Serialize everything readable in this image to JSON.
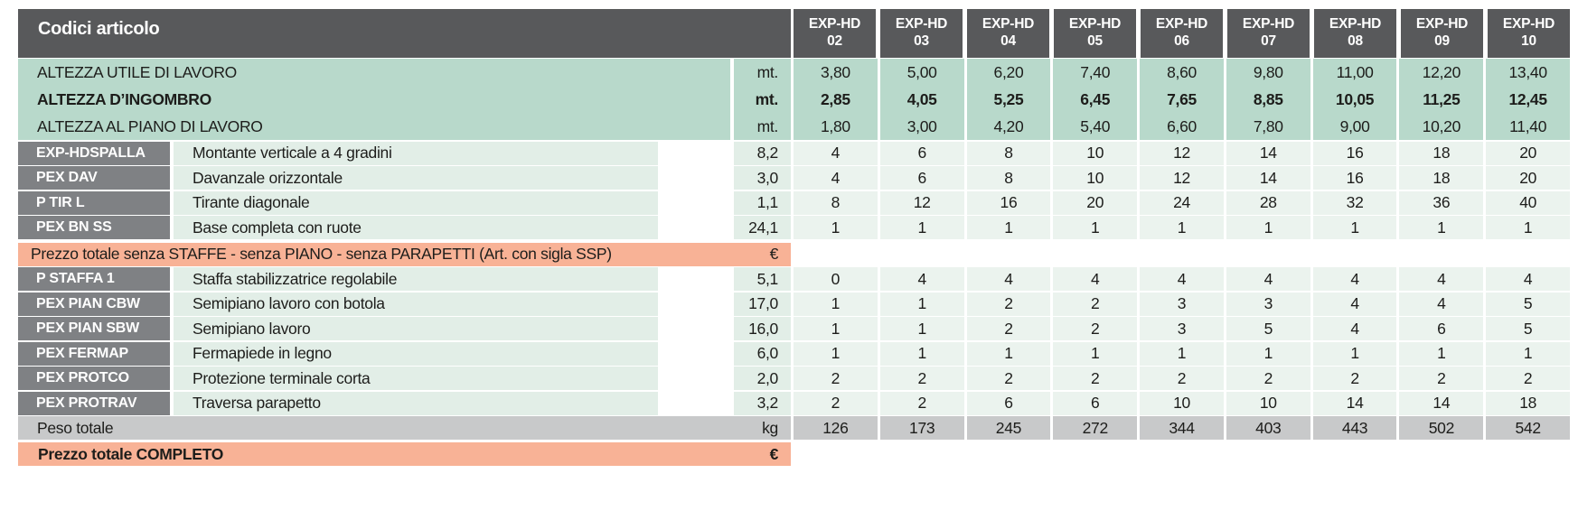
{
  "table": {
    "title": "Codici articolo",
    "column_headers": [
      {
        "model": "EXP-HD",
        "size": "02"
      },
      {
        "model": "EXP-HD",
        "size": "03"
      },
      {
        "model": "EXP-HD",
        "size": "04"
      },
      {
        "model": "EXP-HD",
        "size": "05"
      },
      {
        "model": "EXP-HD",
        "size": "06"
      },
      {
        "model": "EXP-HD",
        "size": "07"
      },
      {
        "model": "EXP-HD",
        "size": "08"
      },
      {
        "model": "EXP-HD",
        "size": "09"
      },
      {
        "model": "EXP-HD",
        "size": "10"
      }
    ],
    "height_rows": [
      {
        "label": "ALTEZZA UTILE DI LAVORO",
        "unit": "mt.",
        "bold": false,
        "values": [
          "3,80",
          "5,00",
          "6,20",
          "7,40",
          "8,60",
          "9,80",
          "11,00",
          "12,20",
          "13,40"
        ]
      },
      {
        "label": "ALTEZZA D’INGOMBRO",
        "unit": "mt.",
        "bold": true,
        "values": [
          "2,85",
          "4,05",
          "5,25",
          "6,45",
          "7,65",
          "8,85",
          "10,05",
          "11,25",
          "12,45"
        ]
      },
      {
        "label": "ALTEZZA AL PIANO DI LAVORO",
        "unit": "mt.",
        "bold": false,
        "values": [
          "1,80",
          "3,00",
          "4,20",
          "5,40",
          "6,60",
          "7,80",
          "9,00",
          "10,20",
          "11,40"
        ]
      }
    ],
    "items_group1": [
      {
        "code": "EXP-HDSPALLA",
        "description": "Montante verticale a 4 gradini",
        "weight": "8,2",
        "quantities": [
          "4",
          "6",
          "8",
          "10",
          "12",
          "14",
          "16",
          "18",
          "20"
        ]
      },
      {
        "code": "PEX DAV",
        "description": "Davanzale orizzontale",
        "weight": "3,0",
        "quantities": [
          "4",
          "6",
          "8",
          "10",
          "12",
          "14",
          "16",
          "18",
          "20"
        ]
      },
      {
        "code": "P TIR L",
        "description": "Tirante diagonale",
        "weight": "1,1",
        "quantities": [
          "8",
          "12",
          "16",
          "20",
          "24",
          "28",
          "32",
          "36",
          "40"
        ]
      },
      {
        "code": "PEX BN SS",
        "description": "Base completa con ruote",
        "weight": "24,1",
        "quantities": [
          "1",
          "1",
          "1",
          "1",
          "1",
          "1",
          "1",
          "1",
          "1"
        ]
      }
    ],
    "subtotal_row": {
      "label": "Prezzo totale senza STAFFE - senza PIANO - senza PARAPETTI (Art. con sigla SSP)",
      "unit": "€"
    },
    "items_group2": [
      {
        "code": "P STAFFA 1",
        "description": "Staffa stabilizzatrice regolabile",
        "weight": "5,1",
        "quantities": [
          "0",
          "4",
          "4",
          "4",
          "4",
          "4",
          "4",
          "4",
          "4"
        ]
      },
      {
        "code": "PEX PIAN CBW",
        "description": "Semipiano lavoro con botola",
        "weight": "17,0",
        "quantities": [
          "1",
          "1",
          "2",
          "2",
          "3",
          "3",
          "4",
          "4",
          "5"
        ]
      },
      {
        "code": "PEX PIAN SBW",
        "description": "Semipiano lavoro",
        "weight": "16,0",
        "quantities": [
          "1",
          "1",
          "2",
          "2",
          "3",
          "5",
          "4",
          "6",
          "5"
        ]
      },
      {
        "code": "PEX FERMAP",
        "description": "Fermapiede in legno",
        "weight": "6,0",
        "quantities": [
          "1",
          "1",
          "1",
          "1",
          "1",
          "1",
          "1",
          "1",
          "1"
        ]
      },
      {
        "code": "PEX PROTCO",
        "description": "Protezione terminale corta",
        "weight": "2,0",
        "quantities": [
          "2",
          "2",
          "2",
          "2",
          "2",
          "2",
          "2",
          "2",
          "2"
        ]
      },
      {
        "code": "PEX PROTRAV",
        "description": "Traversa parapetto",
        "weight": "3,2",
        "quantities": [
          "2",
          "2",
          "6",
          "6",
          "10",
          "10",
          "14",
          "14",
          "18"
        ]
      }
    ],
    "weight_total_row": {
      "label": "Peso totale",
      "unit": "kg",
      "values": [
        "126",
        "173",
        "245",
        "272",
        "344",
        "403",
        "443",
        "502",
        "542"
      ]
    },
    "grand_total_row": {
      "label": "Prezzo totale COMPLETO",
      "unit": "€"
    }
  },
  "colors": {
    "header_dark": "#58595b",
    "badge_gray": "#7f8184",
    "green_band": "#b8d9cb",
    "row_green_desc": "#e2eee7",
    "row_green_data": "#ebf3ee",
    "salmon": "#f8b296",
    "total_gray": "#c8c9ca"
  }
}
